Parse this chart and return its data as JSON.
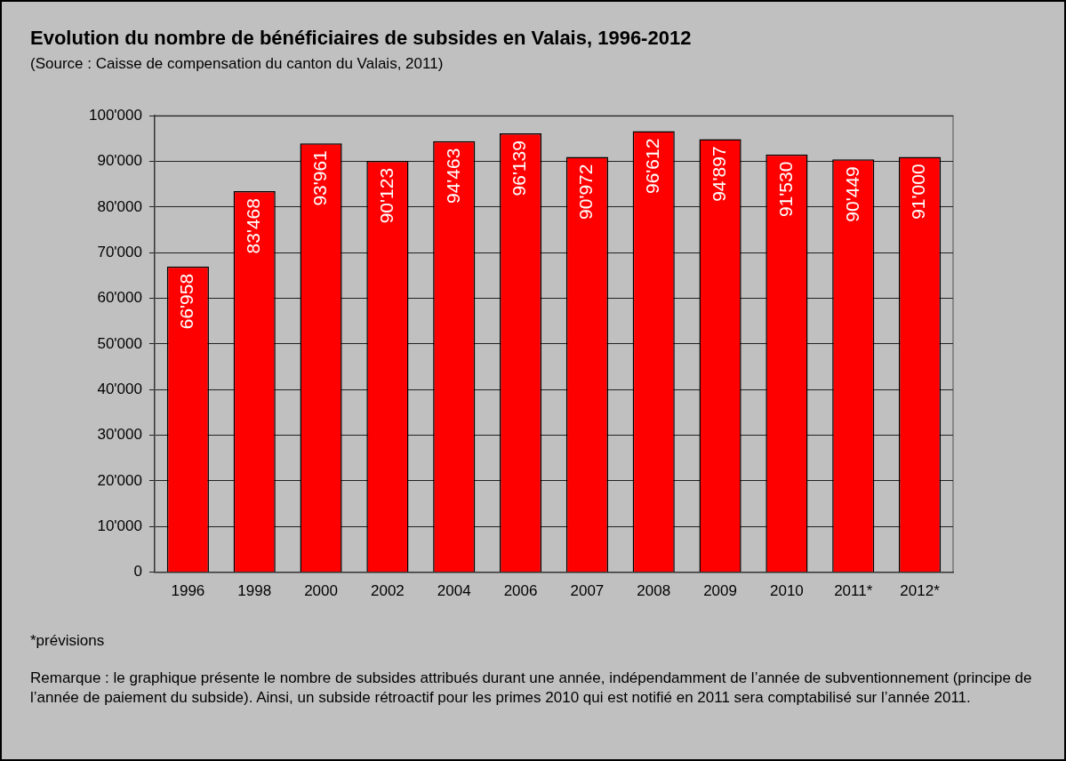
{
  "chart_data": {
    "type": "bar",
    "title": "Evolution du nombre de bénéficiaires de subsides en Valais, 1996-2012",
    "subtitle": "(Source : Caisse de compensation du canton du Valais, 2011)",
    "categories": [
      "1996",
      "1998",
      "2000",
      "2002",
      "2004",
      "2006",
      "2007",
      "2008",
      "2009",
      "2010",
      "2011*",
      "2012*"
    ],
    "values": [
      66958,
      83468,
      93961,
      90123,
      94463,
      96139,
      90972,
      96612,
      94897,
      91530,
      90449,
      91000
    ],
    "value_labels": [
      "66'958",
      "83'468",
      "93'961",
      "90'123",
      "94'463",
      "96'139",
      "90'972",
      "96'612",
      "94'897",
      "91'530",
      "90'449",
      "91'000"
    ],
    "color": "#ff0000",
    "ylim": [
      0,
      100000
    ],
    "yticks": [
      {
        "value": 0,
        "label": "0"
      },
      {
        "value": 10000,
        "label": "10'000"
      },
      {
        "value": 20000,
        "label": "20'000"
      },
      {
        "value": 30000,
        "label": "30'000"
      },
      {
        "value": 40000,
        "label": "40'000"
      },
      {
        "value": 50000,
        "label": "50'000"
      },
      {
        "value": 60000,
        "label": "60'000"
      },
      {
        "value": 70000,
        "label": "70'000"
      },
      {
        "value": 80000,
        "label": "80'000"
      },
      {
        "value": 90000,
        "label": "90'000"
      },
      {
        "value": 100000,
        "label": "100'000"
      }
    ],
    "grid": "y",
    "legend": false,
    "annotations": [
      "*prévisions",
      "Remarque : le graphique présente le nombre de subsides attribués durant une année, indépendamment de l’année de subventionnement (principe de l’année de paiement du subside). Ainsi, un subside rétroactif pour les primes 2010 qui est notifié en 2011 sera comptabilisé sur l’année 2011."
    ]
  }
}
